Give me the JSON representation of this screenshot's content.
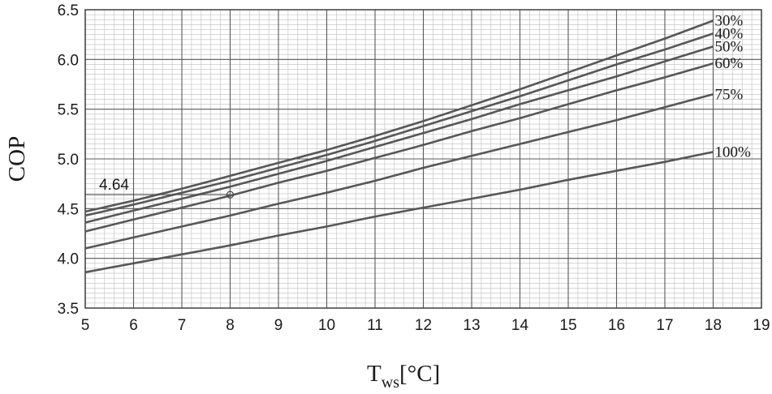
{
  "chart_data": {
    "type": "line",
    "xlabel_main": "T",
    "xlabel_sub": "ws",
    "xlabel_unit": "[°C]",
    "ylabel": "COP",
    "xlim": [
      5,
      19
    ],
    "ylim": [
      3.5,
      6.5
    ],
    "x_ticks": [
      5,
      6,
      7,
      8,
      9,
      10,
      11,
      12,
      13,
      14,
      15,
      16,
      17,
      18,
      19
    ],
    "y_ticks": [
      "3.5",
      "4.0",
      "4.5",
      "5.0",
      "5.5",
      "6.0",
      "6.5"
    ],
    "grid": true,
    "minor_grid": true,
    "x": [
      5,
      6,
      7,
      8,
      9,
      10,
      11,
      12,
      13,
      14,
      15,
      16,
      17,
      18
    ],
    "series": [
      {
        "name": "30%",
        "values": [
          4.47,
          4.58,
          4.7,
          4.83,
          4.96,
          5.09,
          5.23,
          5.38,
          5.54,
          5.7,
          5.87,
          6.04,
          6.21,
          6.39
        ]
      },
      {
        "name": "40%",
        "values": [
          4.43,
          4.54,
          4.66,
          4.78,
          4.91,
          5.04,
          5.18,
          5.33,
          5.48,
          5.63,
          5.79,
          5.95,
          6.1,
          6.26
        ]
      },
      {
        "name": "50%",
        "values": [
          4.36,
          4.48,
          4.6,
          4.72,
          4.85,
          4.98,
          5.12,
          5.26,
          5.4,
          5.55,
          5.69,
          5.83,
          5.98,
          6.13
        ]
      },
      {
        "name": "60%",
        "values": [
          4.27,
          4.39,
          4.51,
          4.63,
          4.76,
          4.88,
          5.01,
          5.14,
          5.28,
          5.41,
          5.55,
          5.69,
          5.82,
          5.96
        ]
      },
      {
        "name": "75%",
        "values": [
          4.1,
          4.21,
          4.32,
          4.43,
          4.55,
          4.66,
          4.78,
          4.91,
          5.03,
          5.15,
          5.27,
          5.39,
          5.52,
          5.65
        ]
      },
      {
        "name": "100%",
        "values": [
          3.86,
          3.95,
          4.04,
          4.13,
          4.23,
          4.32,
          4.42,
          4.51,
          4.6,
          4.69,
          4.79,
          4.88,
          4.97,
          5.07
        ]
      }
    ],
    "annotation": {
      "label": "4.64",
      "x": 8,
      "y": 4.64
    }
  }
}
